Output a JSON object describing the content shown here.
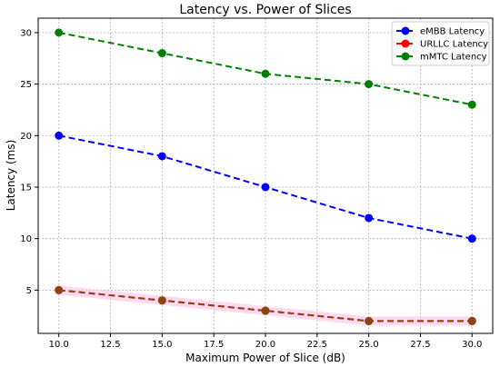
{
  "chart_data": {
    "type": "line",
    "title": "Latency vs. Power of Slices",
    "xlabel": "Maximum Power of Slice (dB)",
    "ylabel": "Latency (ms)",
    "x": [
      10,
      15,
      20,
      25,
      30
    ],
    "xlim": [
      9.0,
      31.0
    ],
    "ylim": [
      0.8,
      31.4
    ],
    "xticks": [
      "10.0",
      "12.5",
      "15.0",
      "17.5",
      "20.0",
      "22.5",
      "25.0",
      "27.5",
      "30.0"
    ],
    "xtick_values": [
      10,
      12.5,
      15,
      17.5,
      20,
      22.5,
      25,
      27.5,
      30
    ],
    "yticks": [
      "5",
      "10",
      "15",
      "20",
      "25",
      "30"
    ],
    "ytick_values": [
      5,
      10,
      15,
      20,
      25,
      30
    ],
    "grid": true,
    "legend_position": "top-right",
    "series": [
      {
        "name": "eMBB Latency",
        "values": [
          20,
          18,
          15,
          12,
          10
        ],
        "color": "#0000ff"
      },
      {
        "name": "URLLC Latency",
        "values": [
          5,
          4,
          3,
          2,
          2
        ],
        "color": "#ff0000"
      },
      {
        "name": "mMTC Latency",
        "values": [
          30,
          28,
          26,
          25,
          23
        ],
        "color": "#008000"
      }
    ],
    "overlay": {
      "values": [
        5,
        4,
        3,
        2,
        2
      ],
      "color": "#8b4513",
      "band_color": "#ffc0e8"
    }
  }
}
